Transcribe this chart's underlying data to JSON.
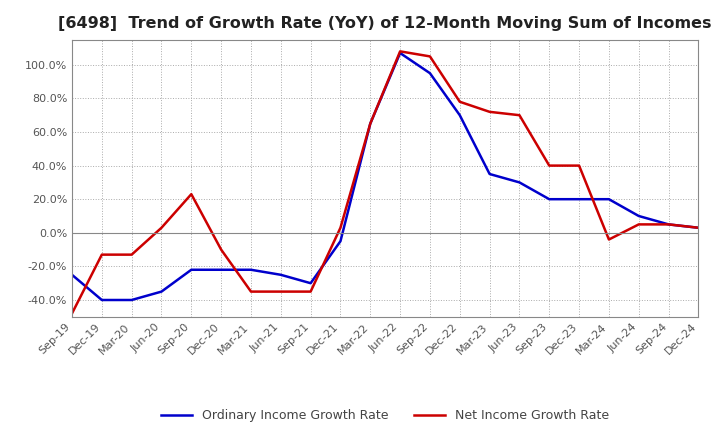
{
  "title": "[6498]  Trend of Growth Rate (YoY) of 12-Month Moving Sum of Incomes",
  "title_fontsize": 11.5,
  "ylim": [
    -50,
    115
  ],
  "yticks": [
    -40,
    -20,
    0,
    20,
    40,
    60,
    80,
    100
  ],
  "background_color": "#ffffff",
  "ordinary_color": "#0000cc",
  "net_color": "#cc0000",
  "legend_labels": [
    "Ordinary Income Growth Rate",
    "Net Income Growth Rate"
  ],
  "x_labels": [
    "Sep-19",
    "Dec-19",
    "Mar-20",
    "Jun-20",
    "Sep-20",
    "Dec-20",
    "Mar-21",
    "Jun-21",
    "Sep-21",
    "Dec-21",
    "Mar-22",
    "Jun-22",
    "Sep-22",
    "Dec-22",
    "Mar-23",
    "Jun-23",
    "Sep-23",
    "Dec-23",
    "Mar-24",
    "Jun-24",
    "Sep-24",
    "Dec-24"
  ],
  "ordinary_income_growth": [
    -25,
    -40,
    -40,
    -35,
    -22,
    -22,
    -22,
    -25,
    -30,
    -5,
    65,
    107,
    95,
    70,
    35,
    30,
    20,
    20,
    20,
    10,
    5,
    3
  ],
  "net_income_growth": [
    -48,
    -13,
    -13,
    3,
    23,
    -10,
    -35,
    -35,
    -35,
    3,
    65,
    108,
    105,
    78,
    72,
    70,
    40,
    40,
    -4,
    5,
    5,
    3
  ]
}
